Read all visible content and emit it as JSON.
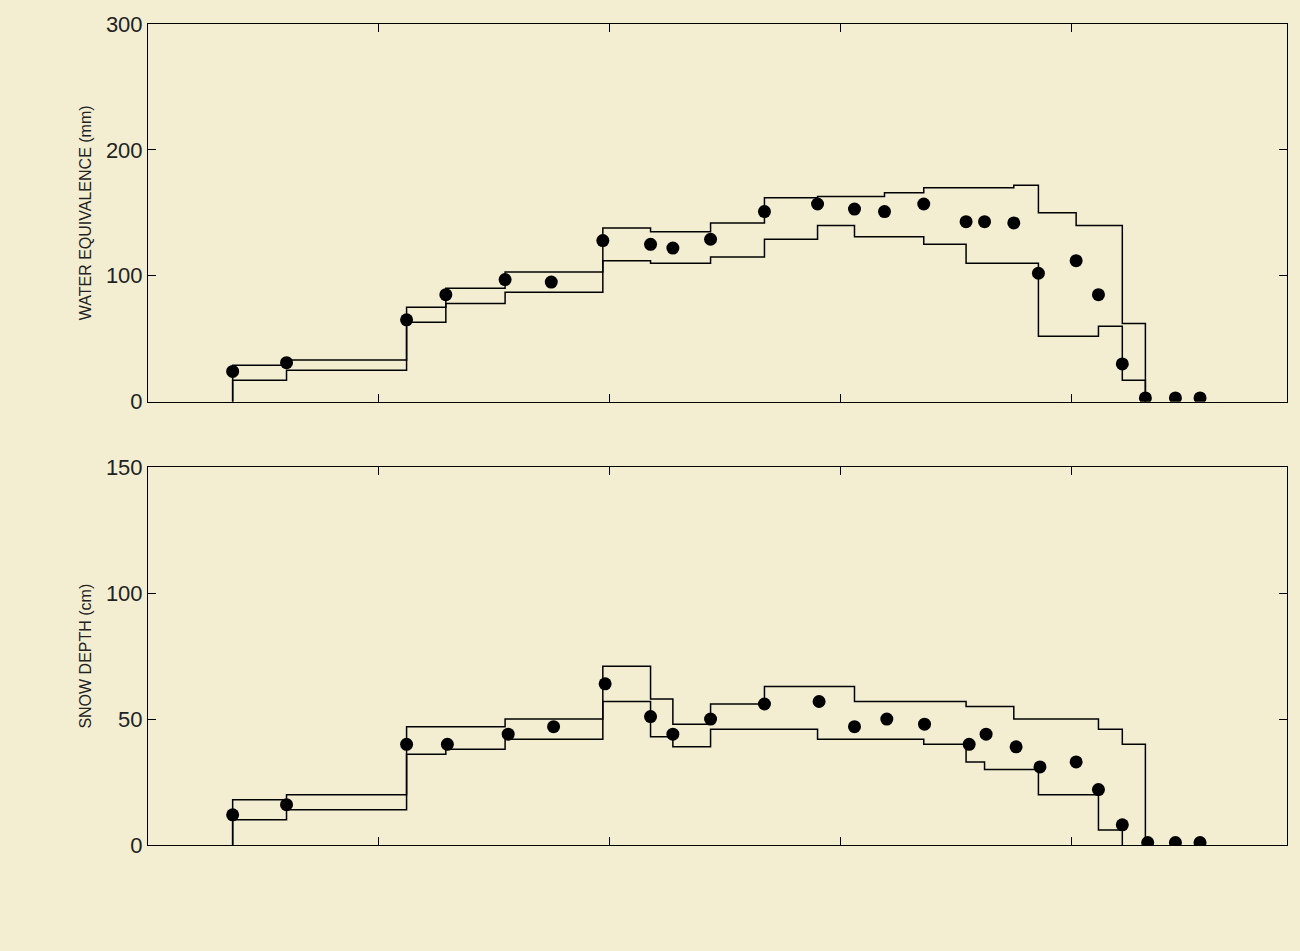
{
  "chart_data": [
    {
      "type": "line",
      "y_label": "WATER EQUIVALENCE (mm)",
      "xlim": [
        0,
        148
      ],
      "xticks": [
        30,
        60,
        90,
        120
      ],
      "ylim": [
        0,
        300
      ],
      "yticks": [
        0,
        100,
        200,
        300
      ],
      "tick_labels": "y",
      "grid": false,
      "series": [
        {
          "type": "scatter",
          "marker": "circle",
          "color": "#000000",
          "x": [
            11,
            18,
            33.6,
            38.7,
            46.4,
            52.4,
            59.1,
            65.3,
            68.2,
            73.1,
            80.1,
            87,
            91.8,
            95.7,
            100.8,
            106.3,
            108.7,
            112.5,
            115.7,
            120.6,
            123.5,
            126.6,
            129.6,
            133.5,
            136.7
          ],
          "values": [
            24,
            31,
            65,
            85,
            97,
            95,
            128,
            125,
            122,
            129,
            151,
            157,
            153,
            151,
            157,
            143,
            143,
            142,
            102,
            112,
            85,
            30,
            3,
            3,
            3
          ]
        },
        {
          "type": "line",
          "line_style": "step",
          "color": "#000000",
          "x": [
            11,
            11,
            18,
            33.6,
            38.7,
            46.4,
            59.1,
            65.3,
            73.1,
            80.1,
            87,
            95.7,
            100.8,
            112.5,
            115.7,
            120.6,
            126.6,
            129.6
          ],
          "values": [
            0,
            29,
            33,
            75,
            90,
            103,
            138,
            135,
            142,
            162,
            163,
            166,
            170,
            172,
            150,
            140,
            62,
            0
          ]
        },
        {
          "type": "line",
          "line_style": "step",
          "color": "#000000",
          "x": [
            11,
            11,
            18,
            33.6,
            38.7,
            46.4,
            59.1,
            65.3,
            73.1,
            80.1,
            87,
            91.8,
            100.8,
            106.3,
            115.7,
            123.5,
            126.6,
            129.6
          ],
          "values": [
            0,
            17,
            25,
            63,
            78,
            87,
            112,
            110,
            115,
            129,
            140,
            131,
            125,
            110,
            52,
            60,
            17,
            0
          ]
        }
      ]
    },
    {
      "type": "line",
      "y_label": "SNOW DEPTH (cm)",
      "xlim": [
        0,
        148
      ],
      "xticks": [
        30,
        60,
        90,
        120
      ],
      "ylim": [
        0,
        150
      ],
      "yticks": [
        0,
        50,
        100,
        150
      ],
      "tick_labels": "y",
      "grid": false,
      "series": [
        {
          "type": "scatter",
          "marker": "circle",
          "color": "#000000",
          "x": [
            11,
            18,
            33.6,
            38.9,
            46.8,
            52.7,
            59.4,
            65.3,
            68.2,
            73.1,
            80.1,
            87.2,
            91.8,
            96,
            100.9,
            106.7,
            108.9,
            112.8,
            115.9,
            120.6,
            123.5,
            126.6,
            129.9,
            133.5,
            136.7
          ],
          "values": [
            12,
            16,
            40,
            40,
            44,
            47,
            64,
            51,
            44,
            50,
            56,
            57,
            47,
            50,
            48,
            40,
            44,
            39,
            31,
            33,
            22,
            8,
            1,
            1,
            1
          ]
        },
        {
          "type": "line",
          "line_style": "step",
          "color": "#000000",
          "x": [
            11,
            11,
            18,
            33.6,
            46.4,
            59.1,
            65.3,
            68.2,
            73.1,
            80.1,
            91.8,
            106.3,
            112.5,
            123.5,
            126.6,
            129.6
          ],
          "values": [
            0,
            18,
            20,
            47,
            50,
            71,
            58,
            48,
            56,
            63,
            57,
            55,
            50,
            46,
            40,
            0
          ]
        },
        {
          "type": "line",
          "line_style": "step",
          "color": "#000000",
          "x": [
            11,
            11,
            18,
            33.6,
            38.7,
            46.4,
            59.1,
            65.3,
            68.2,
            73.1,
            87,
            100.8,
            106.3,
            108.7,
            115.7,
            123.5,
            126.6
          ],
          "values": [
            0,
            10,
            14,
            36,
            38,
            42,
            57,
            43,
            39,
            46,
            42,
            40,
            33,
            30,
            20,
            6,
            0
          ]
        }
      ]
    }
  ]
}
